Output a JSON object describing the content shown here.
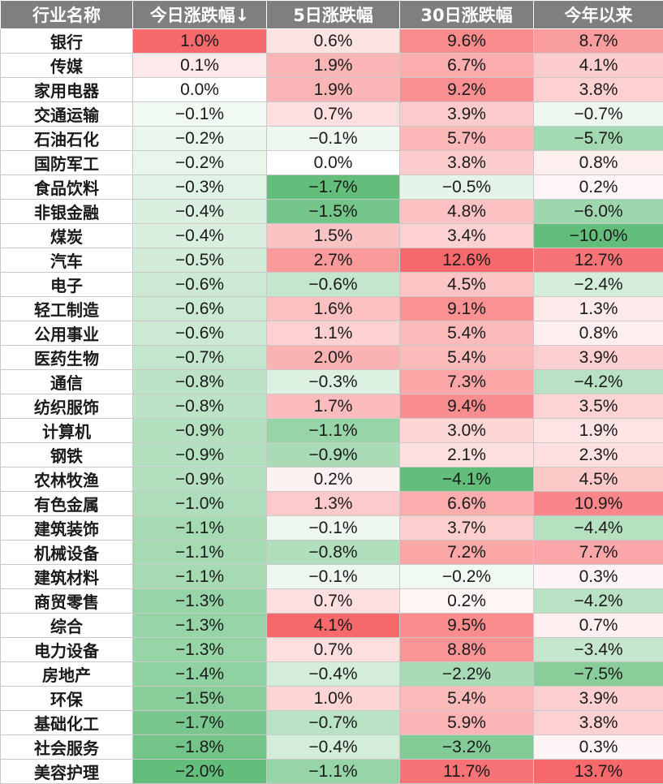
{
  "colors": {
    "header_bg": "#7f7f7f",
    "header_text": "#ffffff",
    "positive_max": "#f8696b",
    "negative_max": "#63be7b",
    "neutral": "#ffffff"
  },
  "table": {
    "headers": [
      "行业名称",
      "今日涨跌幅↓",
      "5日涨跌幅",
      "30日涨跌幅",
      "今年以来"
    ],
    "sort_column": 1,
    "sort_direction": "descending",
    "rows": [
      {
        "name": "银行",
        "values": [
          "1.0%",
          "0.6%",
          "9.6%",
          "8.7%"
        ]
      },
      {
        "name": "传媒",
        "values": [
          "0.1%",
          "1.9%",
          "6.7%",
          "4.1%"
        ]
      },
      {
        "name": "家用电器",
        "values": [
          "0.0%",
          "1.9%",
          "9.2%",
          "3.8%"
        ]
      },
      {
        "name": "交通运输",
        "values": [
          "−0.1%",
          "0.7%",
          "3.9%",
          "−0.7%"
        ]
      },
      {
        "name": "石油石化",
        "values": [
          "−0.2%",
          "−0.1%",
          "5.7%",
          "−5.7%"
        ]
      },
      {
        "name": "国防军工",
        "values": [
          "−0.2%",
          "0.0%",
          "3.8%",
          "0.8%"
        ]
      },
      {
        "name": "食品饮料",
        "values": [
          "−0.3%",
          "−1.7%",
          "−0.5%",
          "0.2%"
        ]
      },
      {
        "name": "非银金融",
        "values": [
          "−0.4%",
          "−1.5%",
          "4.8%",
          "−6.0%"
        ]
      },
      {
        "name": "煤炭",
        "values": [
          "−0.4%",
          "1.5%",
          "3.4%",
          "−10.0%"
        ]
      },
      {
        "name": "汽车",
        "values": [
          "−0.5%",
          "2.7%",
          "12.6%",
          "12.7%"
        ]
      },
      {
        "name": "电子",
        "values": [
          "−0.6%",
          "−0.6%",
          "4.5%",
          "−2.4%"
        ]
      },
      {
        "name": "轻工制造",
        "values": [
          "−0.6%",
          "1.6%",
          "9.1%",
          "1.3%"
        ]
      },
      {
        "name": "公用事业",
        "values": [
          "−0.6%",
          "1.1%",
          "5.4%",
          "0.8%"
        ]
      },
      {
        "name": "医药生物",
        "values": [
          "−0.7%",
          "2.0%",
          "5.4%",
          "3.9%"
        ]
      },
      {
        "name": "通信",
        "values": [
          "−0.8%",
          "−0.3%",
          "7.3%",
          "−4.2%"
        ]
      },
      {
        "name": "纺织服饰",
        "values": [
          "−0.8%",
          "1.7%",
          "9.4%",
          "3.5%"
        ]
      },
      {
        "name": "计算机",
        "values": [
          "−0.9%",
          "−1.1%",
          "3.0%",
          "1.9%"
        ]
      },
      {
        "name": "钢铁",
        "values": [
          "−0.9%",
          "−0.9%",
          "2.1%",
          "2.3%"
        ]
      },
      {
        "name": "农林牧渔",
        "values": [
          "−0.9%",
          "0.2%",
          "−4.1%",
          "4.5%"
        ]
      },
      {
        "name": "有色金属",
        "values": [
          "−1.0%",
          "1.3%",
          "6.6%",
          "10.9%"
        ]
      },
      {
        "name": "建筑装饰",
        "values": [
          "−1.1%",
          "−0.1%",
          "3.7%",
          "−4.4%"
        ]
      },
      {
        "name": "机械设备",
        "values": [
          "−1.1%",
          "−0.8%",
          "7.2%",
          "7.7%"
        ]
      },
      {
        "name": "建筑材料",
        "values": [
          "−1.1%",
          "−0.1%",
          "−0.2%",
          "0.3%"
        ]
      },
      {
        "name": "商贸零售",
        "values": [
          "−1.3%",
          "0.7%",
          "0.2%",
          "−4.2%"
        ]
      },
      {
        "name": "综合",
        "values": [
          "−1.3%",
          "4.1%",
          "9.5%",
          "0.7%"
        ]
      },
      {
        "name": "电力设备",
        "values": [
          "−1.3%",
          "0.7%",
          "8.8%",
          "−3.4%"
        ]
      },
      {
        "name": "房地产",
        "values": [
          "−1.4%",
          "−0.4%",
          "−2.2%",
          "−7.5%"
        ]
      },
      {
        "name": "环保",
        "values": [
          "−1.5%",
          "1.0%",
          "5.4%",
          "3.9%"
        ]
      },
      {
        "name": "基础化工",
        "values": [
          "−1.7%",
          "−0.7%",
          "5.9%",
          "3.8%"
        ]
      },
      {
        "name": "社会服务",
        "values": [
          "−1.8%",
          "−0.4%",
          "−3.2%",
          "0.3%"
        ]
      },
      {
        "name": "美容护理",
        "values": [
          "−2.0%",
          "−1.1%",
          "11.7%",
          "13.7%"
        ]
      }
    ]
  }
}
